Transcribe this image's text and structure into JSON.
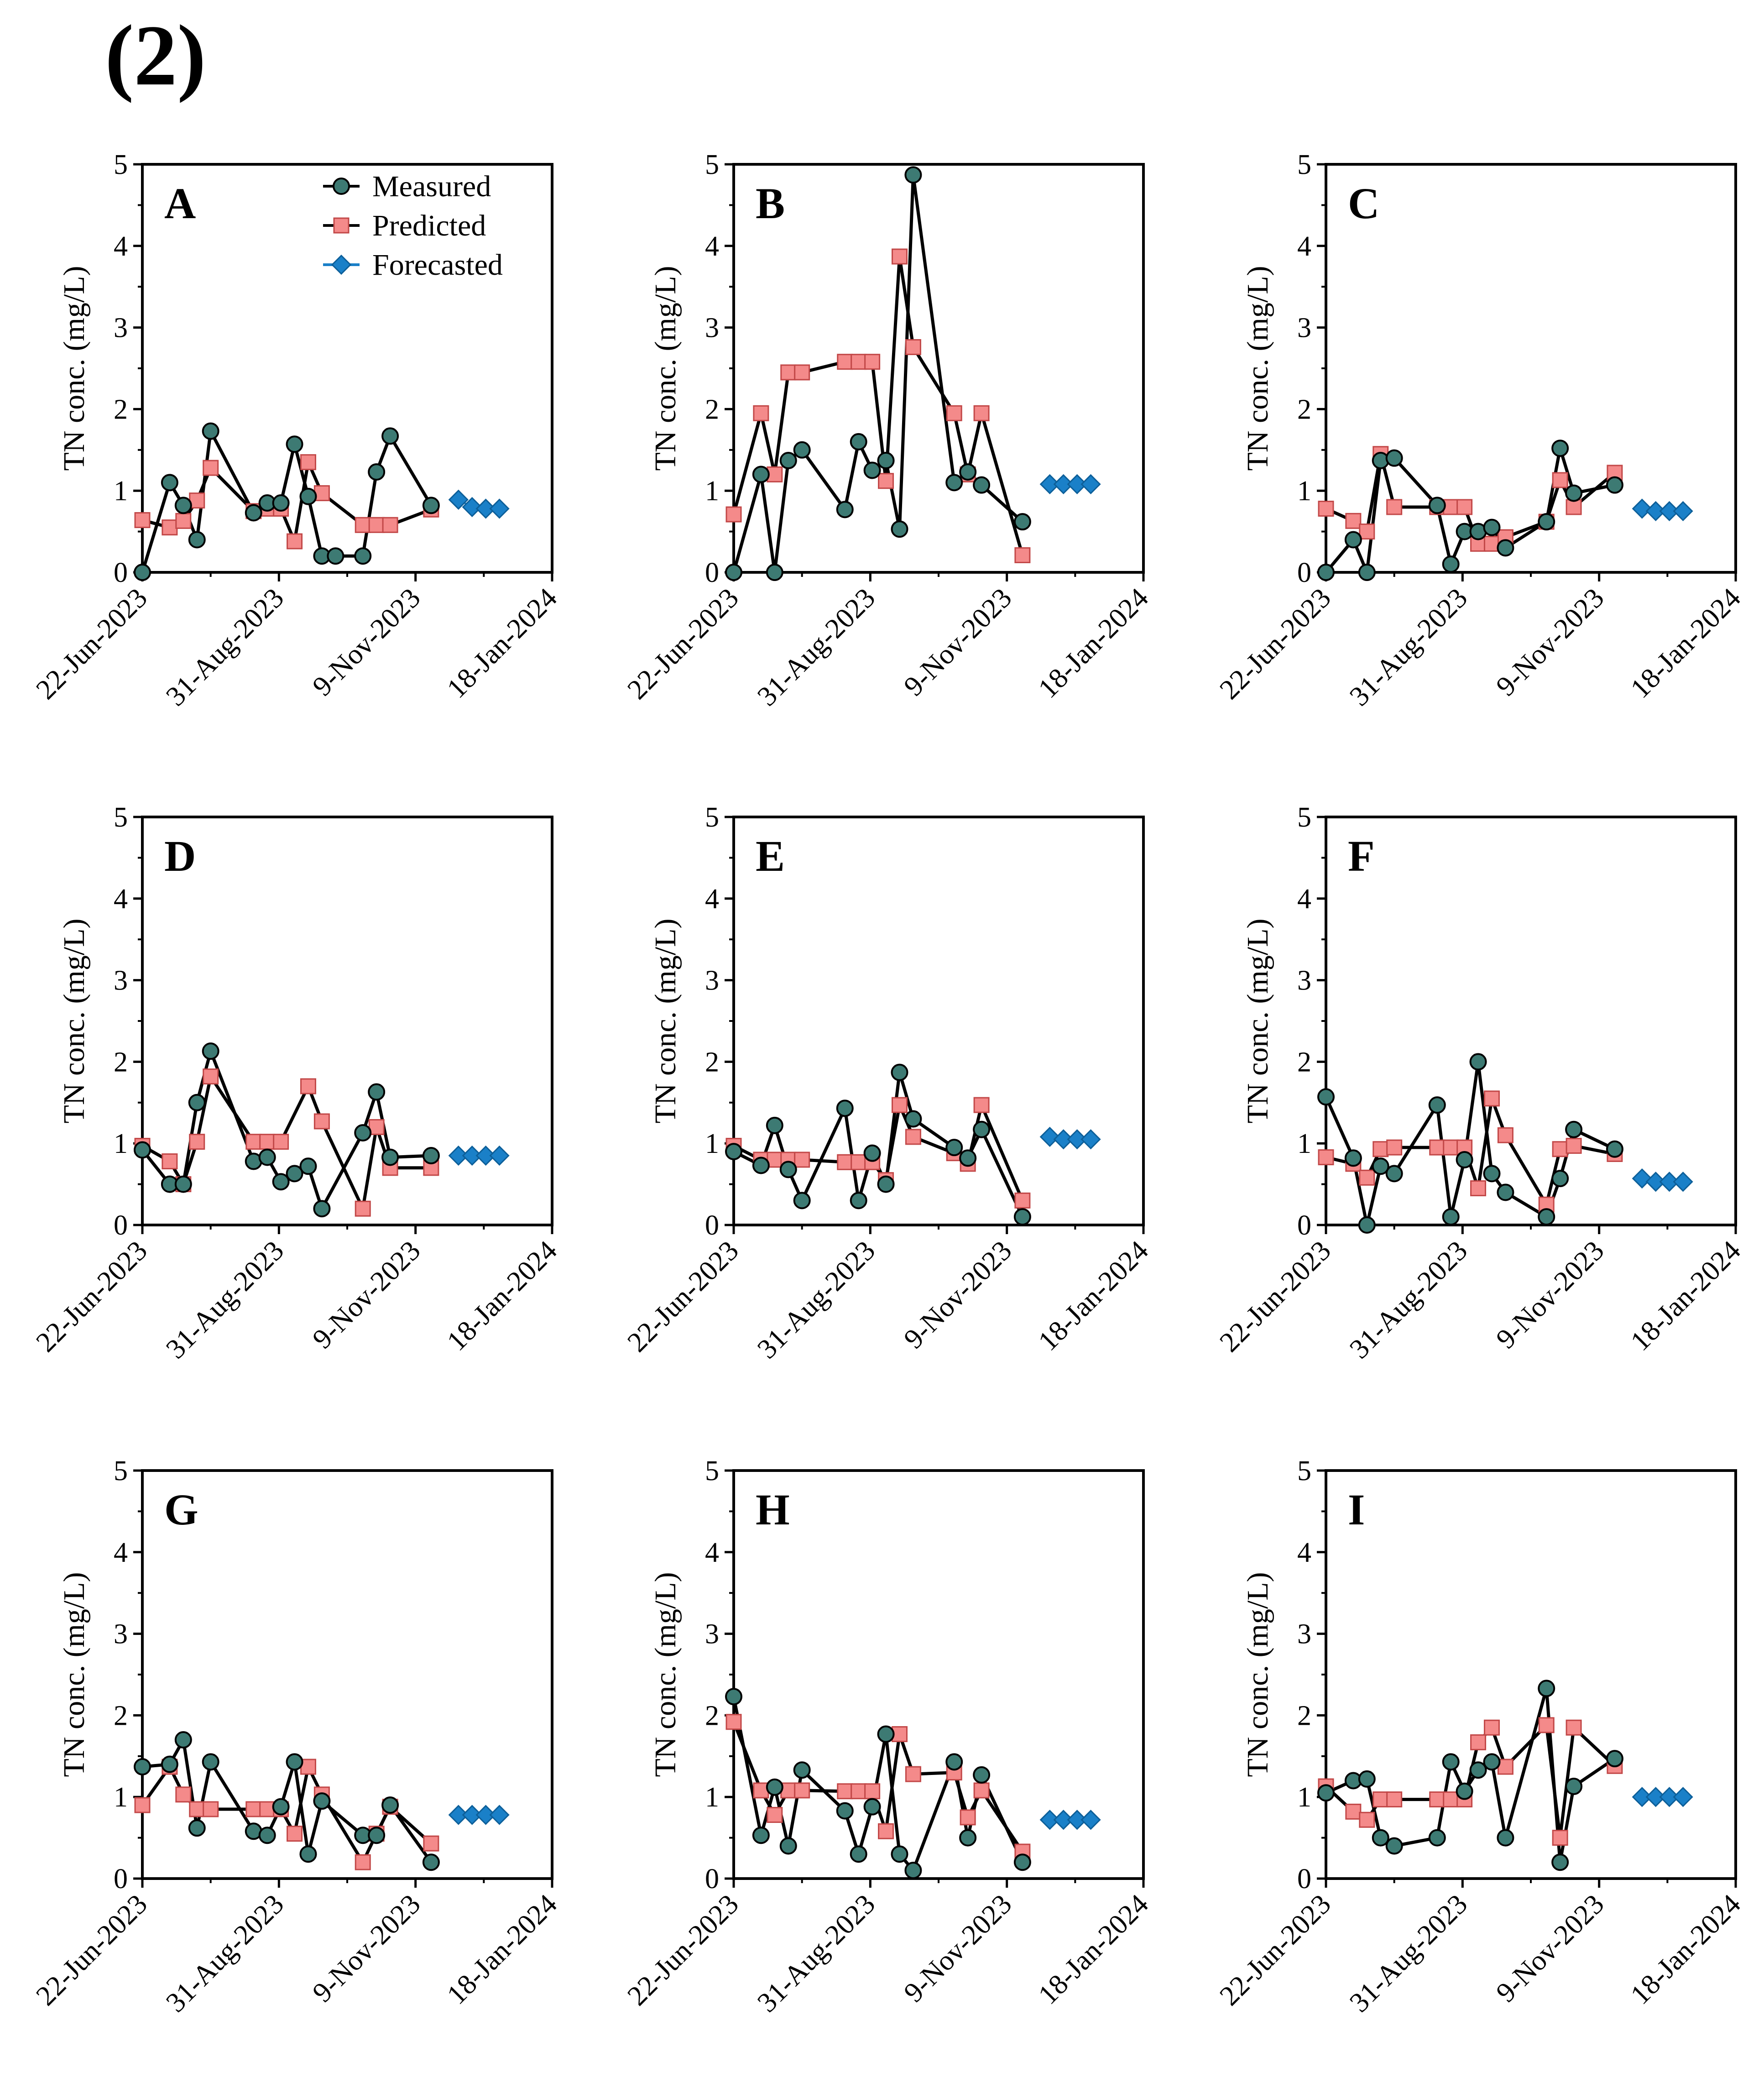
{
  "figure_label": "(2)",
  "colors": {
    "measured": "#3d7a73",
    "predicted": "#f48a8a",
    "forecasted": "#1a80c8",
    "line": "#000000"
  },
  "legend": {
    "measured": "Measured",
    "predicted": "Predicted",
    "forecasted": "Forecasted"
  },
  "chart_data": [
    {
      "panel": "A",
      "type": "line",
      "title": "A",
      "ylabel": "TN conc. (mg/L)",
      "ylim": [
        0,
        5
      ],
      "yticks": [
        "0",
        "1",
        "2",
        "3",
        "4",
        "5"
      ],
      "xlim_days": [
        0,
        210
      ],
      "xticks": [
        {
          "day": 0,
          "label": "22-Jun-2023"
        },
        {
          "day": 70,
          "label": "31-Aug-2023"
        },
        {
          "day": 140,
          "label": "9-Nov-2023"
        },
        {
          "day": 210,
          "label": "18-Jan-2024"
        }
      ],
      "series": [
        {
          "name": "Measured",
          "x": [
            0,
            14,
            21,
            28,
            35,
            57,
            64,
            71,
            78,
            85,
            92,
            99,
            113,
            120,
            127,
            148
          ],
          "y": [
            0,
            1.1,
            0.82,
            0.4,
            1.73,
            0.73,
            0.85,
            0.85,
            1.57,
            0.93,
            0.2,
            0.2,
            0.2,
            1.23,
            1.67,
            0.82
          ]
        },
        {
          "name": "Predicted",
          "x": [
            0,
            14,
            21,
            28,
            35,
            57,
            64,
            71,
            78,
            85,
            92,
            113,
            120,
            127,
            148
          ],
          "y": [
            0.64,
            0.55,
            0.63,
            0.88,
            1.28,
            0.75,
            0.78,
            0.78,
            0.38,
            1.35,
            0.97,
            0.58,
            0.58,
            0.58,
            0.77
          ]
        },
        {
          "name": "Forecasted",
          "x": [
            162,
            169,
            176,
            183
          ],
          "y": [
            0.89,
            0.8,
            0.78,
            0.78
          ]
        }
      ]
    },
    {
      "panel": "B",
      "type": "line",
      "title": "B",
      "ylabel": "TN conc. (mg/L)",
      "ylim": [
        0,
        5
      ],
      "yticks": [
        "0",
        "1",
        "2",
        "3",
        "4",
        "5"
      ],
      "xlim_days": [
        0,
        210
      ],
      "xticks": [
        {
          "day": 0,
          "label": "22-Jun-2023"
        },
        {
          "day": 70,
          "label": "31-Aug-2023"
        },
        {
          "day": 140,
          "label": "9-Nov-2023"
        },
        {
          "day": 210,
          "label": "18-Jan-2024"
        }
      ],
      "series": [
        {
          "name": "Measured",
          "x": [
            0,
            14,
            21,
            28,
            35,
            57,
            64,
            71,
            78,
            85,
            92,
            113,
            120,
            127,
            148
          ],
          "y": [
            0,
            1.2,
            0,
            1.37,
            1.5,
            0.77,
            1.6,
            1.25,
            1.37,
            0.53,
            4.87,
            1.1,
            1.23,
            1.07,
            0.62
          ]
        },
        {
          "name": "Predicted",
          "x": [
            0,
            14,
            21,
            28,
            35,
            57,
            64,
            71,
            78,
            85,
            92,
            113,
            120,
            127,
            148
          ],
          "y": [
            0.71,
            1.95,
            1.2,
            2.45,
            2.45,
            2.58,
            2.58,
            2.58,
            1.12,
            3.87,
            2.76,
            1.95,
            1.2,
            1.95,
            0.21
          ]
        },
        {
          "name": "Forecasted",
          "x": [
            162,
            169,
            176,
            183
          ],
          "y": [
            1.08,
            1.08,
            1.08,
            1.08
          ]
        }
      ]
    },
    {
      "panel": "C",
      "type": "line",
      "title": "C",
      "ylabel": "TN conc. (mg/L)",
      "ylim": [
        0,
        5
      ],
      "yticks": [
        "0",
        "1",
        "2",
        "3",
        "4",
        "5"
      ],
      "xlim_days": [
        0,
        210
      ],
      "xticks": [
        {
          "day": 0,
          "label": "22-Jun-2023"
        },
        {
          "day": 70,
          "label": "31-Aug-2023"
        },
        {
          "day": 140,
          "label": "9-Nov-2023"
        },
        {
          "day": 210,
          "label": "18-Jan-2024"
        }
      ],
      "series": [
        {
          "name": "Measured",
          "x": [
            0,
            14,
            21,
            28,
            35,
            57,
            64,
            71,
            78,
            85,
            92,
            113,
            120,
            127,
            148
          ],
          "y": [
            0,
            0.4,
            0,
            1.37,
            1.4,
            0.82,
            0.1,
            0.5,
            0.5,
            0.55,
            0.3,
            0.62,
            1.52,
            0.97,
            1.07
          ]
        },
        {
          "name": "Predicted",
          "x": [
            0,
            14,
            21,
            28,
            35,
            57,
            64,
            71,
            78,
            85,
            92,
            113,
            120,
            127,
            148
          ],
          "y": [
            0.78,
            0.63,
            0.5,
            1.45,
            0.8,
            0.8,
            0.8,
            0.8,
            0.35,
            0.35,
            0.43,
            0.62,
            1.13,
            0.8,
            1.22
          ]
        },
        {
          "name": "Forecasted",
          "x": [
            162,
            169,
            176,
            183
          ],
          "y": [
            0.78,
            0.75,
            0.75,
            0.75
          ]
        }
      ]
    },
    {
      "panel": "D",
      "type": "line",
      "title": "D",
      "ylabel": "TN conc. (mg/L)",
      "ylim": [
        0,
        5
      ],
      "yticks": [
        "0",
        "1",
        "2",
        "3",
        "4",
        "5"
      ],
      "xlim_days": [
        0,
        210
      ],
      "xticks": [
        {
          "day": 0,
          "label": "22-Jun-2023"
        },
        {
          "day": 70,
          "label": "31-Aug-2023"
        },
        {
          "day": 140,
          "label": "9-Nov-2023"
        },
        {
          "day": 210,
          "label": "18-Jan-2024"
        }
      ],
      "series": [
        {
          "name": "Measured",
          "x": [
            0,
            14,
            21,
            28,
            35,
            57,
            64,
            71,
            78,
            85,
            92,
            113,
            120,
            127,
            148
          ],
          "y": [
            0.92,
            0.5,
            0.5,
            1.5,
            2.13,
            0.78,
            0.83,
            0.53,
            0.63,
            0.72,
            0.2,
            1.13,
            1.63,
            0.83,
            0.85
          ]
        },
        {
          "name": "Predicted",
          "x": [
            0,
            14,
            21,
            28,
            35,
            57,
            64,
            71,
            85,
            92,
            113,
            120,
            127,
            148
          ],
          "y": [
            0.97,
            0.78,
            0.5,
            1.02,
            1.82,
            1.02,
            1.02,
            1.02,
            1.7,
            1.27,
            0.2,
            1.2,
            0.7,
            0.7
          ]
        },
        {
          "name": "Forecasted",
          "x": [
            162,
            169,
            176,
            183
          ],
          "y": [
            0.85,
            0.85,
            0.85,
            0.85
          ]
        }
      ]
    },
    {
      "panel": "E",
      "type": "line",
      "title": "E",
      "ylabel": "TN conc. (mg/L)",
      "ylim": [
        0,
        5
      ],
      "yticks": [
        "0",
        "1",
        "2",
        "3",
        "4",
        "5"
      ],
      "xlim_days": [
        0,
        210
      ],
      "xticks": [
        {
          "day": 0,
          "label": "22-Jun-2023"
        },
        {
          "day": 70,
          "label": "31-Aug-2023"
        },
        {
          "day": 140,
          "label": "9-Nov-2023"
        },
        {
          "day": 210,
          "label": "18-Jan-2024"
        }
      ],
      "series": [
        {
          "name": "Measured",
          "x": [
            0,
            14,
            21,
            28,
            35,
            57,
            64,
            71,
            78,
            85,
            92,
            113,
            120,
            127,
            148
          ],
          "y": [
            0.9,
            0.73,
            1.22,
            0.68,
            0.3,
            1.43,
            0.3,
            0.88,
            0.5,
            1.87,
            1.3,
            0.95,
            0.82,
            1.17,
            0.1
          ]
        },
        {
          "name": "Predicted",
          "x": [
            0,
            14,
            21,
            28,
            35,
            57,
            64,
            71,
            78,
            85,
            92,
            113,
            120,
            127,
            148
          ],
          "y": [
            0.97,
            0.8,
            0.8,
            0.8,
            0.8,
            0.77,
            0.77,
            0.77,
            0.55,
            1.47,
            1.08,
            0.88,
            0.75,
            1.47,
            0.3
          ]
        },
        {
          "name": "Forecasted",
          "x": [
            162,
            169,
            176,
            183
          ],
          "y": [
            1.08,
            1.05,
            1.05,
            1.05
          ]
        }
      ]
    },
    {
      "panel": "F",
      "type": "line",
      "title": "F",
      "ylabel": "TN conc. (mg/L)",
      "ylim": [
        0,
        5
      ],
      "yticks": [
        "0",
        "1",
        "2",
        "3",
        "4",
        "5"
      ],
      "xlim_days": [
        0,
        210
      ],
      "xticks": [
        {
          "day": 0,
          "label": "22-Jun-2023"
        },
        {
          "day": 70,
          "label": "31-Aug-2023"
        },
        {
          "day": 140,
          "label": "9-Nov-2023"
        },
        {
          "day": 210,
          "label": "18-Jan-2024"
        }
      ],
      "series": [
        {
          "name": "Measured",
          "x": [
            0,
            14,
            21,
            28,
            35,
            57,
            64,
            71,
            78,
            85,
            92,
            113,
            120,
            127,
            148
          ],
          "y": [
            1.57,
            0.82,
            0,
            0.72,
            0.63,
            1.47,
            0.1,
            0.8,
            2.0,
            0.63,
            0.4,
            0.1,
            0.57,
            1.17,
            0.93
          ]
        },
        {
          "name": "Predicted",
          "x": [
            0,
            14,
            21,
            28,
            35,
            57,
            64,
            71,
            78,
            85,
            92,
            113,
            120,
            127,
            148
          ],
          "y": [
            0.83,
            0.75,
            0.58,
            0.93,
            0.95,
            0.95,
            0.95,
            0.95,
            0.45,
            1.55,
            1.1,
            0.25,
            0.93,
            0.97,
            0.87
          ]
        },
        {
          "name": "Forecasted",
          "x": [
            162,
            169,
            176,
            183
          ],
          "y": [
            0.57,
            0.53,
            0.53,
            0.53
          ]
        }
      ]
    },
    {
      "panel": "G",
      "type": "line",
      "title": "G",
      "ylabel": "TN conc. (mg/L)",
      "ylim": [
        0,
        5
      ],
      "yticks": [
        "0",
        "1",
        "2",
        "3",
        "4",
        "5"
      ],
      "xlim_days": [
        0,
        210
      ],
      "xticks": [
        {
          "day": 0,
          "label": "22-Jun-2023"
        },
        {
          "day": 70,
          "label": "31-Aug-2023"
        },
        {
          "day": 140,
          "label": "9-Nov-2023"
        },
        {
          "day": 210,
          "label": "18-Jan-2024"
        }
      ],
      "series": [
        {
          "name": "Measured",
          "x": [
            0,
            14,
            21,
            28,
            35,
            57,
            64,
            71,
            78,
            85,
            92,
            113,
            120,
            127,
            148
          ],
          "y": [
            1.37,
            1.4,
            1.7,
            0.62,
            1.43,
            0.58,
            0.53,
            0.88,
            1.43,
            0.3,
            0.95,
            0.53,
            0.53,
            0.9,
            0.2
          ]
        },
        {
          "name": "Predicted",
          "x": [
            0,
            14,
            21,
            28,
            35,
            57,
            64,
            71,
            78,
            85,
            92,
            113,
            120,
            127,
            148
          ],
          "y": [
            0.9,
            1.37,
            1.03,
            0.85,
            0.85,
            0.85,
            0.85,
            0.85,
            0.55,
            1.37,
            1.03,
            0.2,
            0.55,
            0.88,
            0.43
          ]
        },
        {
          "name": "Forecasted",
          "x": [
            162,
            169,
            176,
            183
          ],
          "y": [
            0.78,
            0.78,
            0.78,
            0.78
          ]
        }
      ]
    },
    {
      "panel": "H",
      "type": "line",
      "title": "H",
      "ylabel": "TN conc. (mg/L)",
      "ylim": [
        0,
        5
      ],
      "yticks": [
        "0",
        "1",
        "2",
        "3",
        "4",
        "5"
      ],
      "xlim_days": [
        0,
        210
      ],
      "xticks": [
        {
          "day": 0,
          "label": "22-Jun-2023"
        },
        {
          "day": 70,
          "label": "31-Aug-2023"
        },
        {
          "day": 140,
          "label": "9-Nov-2023"
        },
        {
          "day": 210,
          "label": "18-Jan-2024"
        }
      ],
      "series": [
        {
          "name": "Measured",
          "x": [
            0,
            14,
            21,
            28,
            35,
            57,
            64,
            71,
            78,
            85,
            92,
            113,
            120,
            127,
            148
          ],
          "y": [
            2.23,
            0.53,
            1.12,
            0.4,
            1.33,
            0.83,
            0.3,
            0.88,
            1.77,
            0.3,
            0.1,
            1.43,
            0.5,
            1.27,
            0.2
          ]
        },
        {
          "name": "Predicted",
          "x": [
            0,
            14,
            21,
            28,
            35,
            57,
            64,
            71,
            78,
            85,
            92,
            113,
            120,
            127,
            148
          ],
          "y": [
            1.92,
            1.08,
            0.78,
            1.08,
            1.08,
            1.07,
            1.07,
            1.07,
            0.58,
            1.77,
            1.28,
            1.3,
            0.75,
            1.08,
            0.33
          ]
        },
        {
          "name": "Forecasted",
          "x": [
            162,
            169,
            176,
            183
          ],
          "y": [
            0.72,
            0.72,
            0.72,
            0.72
          ]
        }
      ]
    },
    {
      "panel": "I",
      "type": "line",
      "title": "I",
      "ylabel": "TN conc. (mg/L)",
      "ylim": [
        0,
        5
      ],
      "yticks": [
        "0",
        "1",
        "2",
        "3",
        "4",
        "5"
      ],
      "xlim_days": [
        0,
        210
      ],
      "xticks": [
        {
          "day": 0,
          "label": "22-Jun-2023"
        },
        {
          "day": 70,
          "label": "31-Aug-2023"
        },
        {
          "day": 140,
          "label": "9-Nov-2023"
        },
        {
          "day": 210,
          "label": "18-Jan-2024"
        }
      ],
      "series": [
        {
          "name": "Measured",
          "x": [
            0,
            14,
            21,
            28,
            35,
            57,
            64,
            71,
            78,
            85,
            92,
            113,
            120,
            127,
            148
          ],
          "y": [
            1.05,
            1.2,
            1.22,
            0.5,
            0.4,
            0.5,
            1.43,
            1.07,
            1.33,
            1.43,
            0.5,
            2.33,
            0.2,
            1.13,
            1.47
          ]
        },
        {
          "name": "Predicted",
          "x": [
            0,
            14,
            21,
            28,
            35,
            57,
            64,
            71,
            78,
            85,
            92,
            113,
            120,
            127,
            148
          ],
          "y": [
            1.13,
            0.82,
            0.72,
            0.97,
            0.97,
            0.97,
            0.97,
            0.97,
            1.67,
            1.85,
            1.37,
            1.88,
            0.5,
            1.85,
            1.38
          ]
        },
        {
          "name": "Forecasted",
          "x": [
            162,
            169,
            176,
            183
          ],
          "y": [
            1.0,
            1.0,
            1.0,
            1.0
          ]
        }
      ]
    }
  ]
}
